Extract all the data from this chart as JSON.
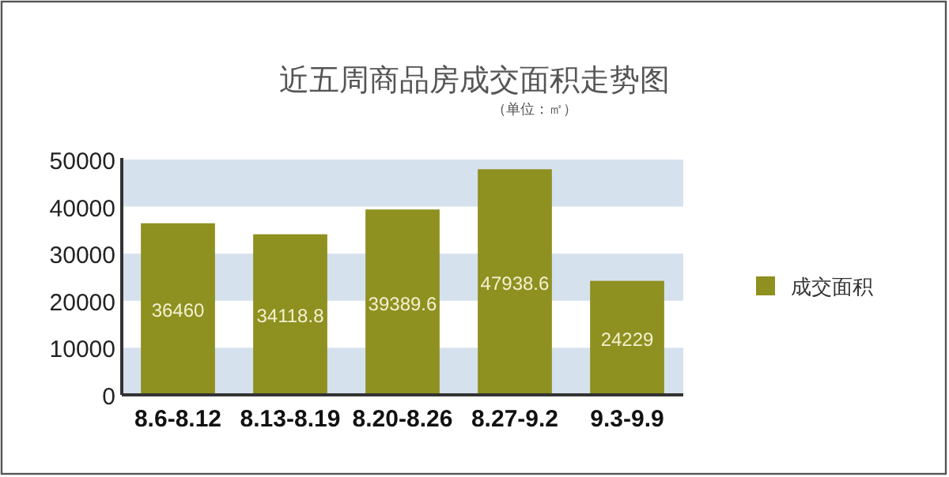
{
  "chart_data": {
    "type": "bar",
    "title": "近五周商品房成交面积走势图",
    "subtitle": "（单位：㎡）",
    "categories": [
      "8.6-8.12",
      "8.13-8.19",
      "8.20-8.26",
      "8.27-9.2",
      "9.3-9.9"
    ],
    "series": [
      {
        "name": "成交面积",
        "color": "#8e9020",
        "values": [
          36460,
          34118.8,
          39389.6,
          47938.6,
          24229
        ]
      }
    ],
    "ylim": [
      0,
      50000
    ],
    "yticks": [
      0,
      10000,
      20000,
      30000,
      40000,
      50000
    ],
    "bands": [
      {
        "axis": "y",
        "from": 0,
        "to": 10000,
        "color": "#d6e1ee"
      },
      {
        "axis": "y",
        "from": 20000,
        "to": 30000,
        "color": "#d6e1ee"
      },
      {
        "axis": "y",
        "from": 40000,
        "to": 50000,
        "color": "#d6e1ee"
      }
    ],
    "legend": "right",
    "data_labels": true
  }
}
